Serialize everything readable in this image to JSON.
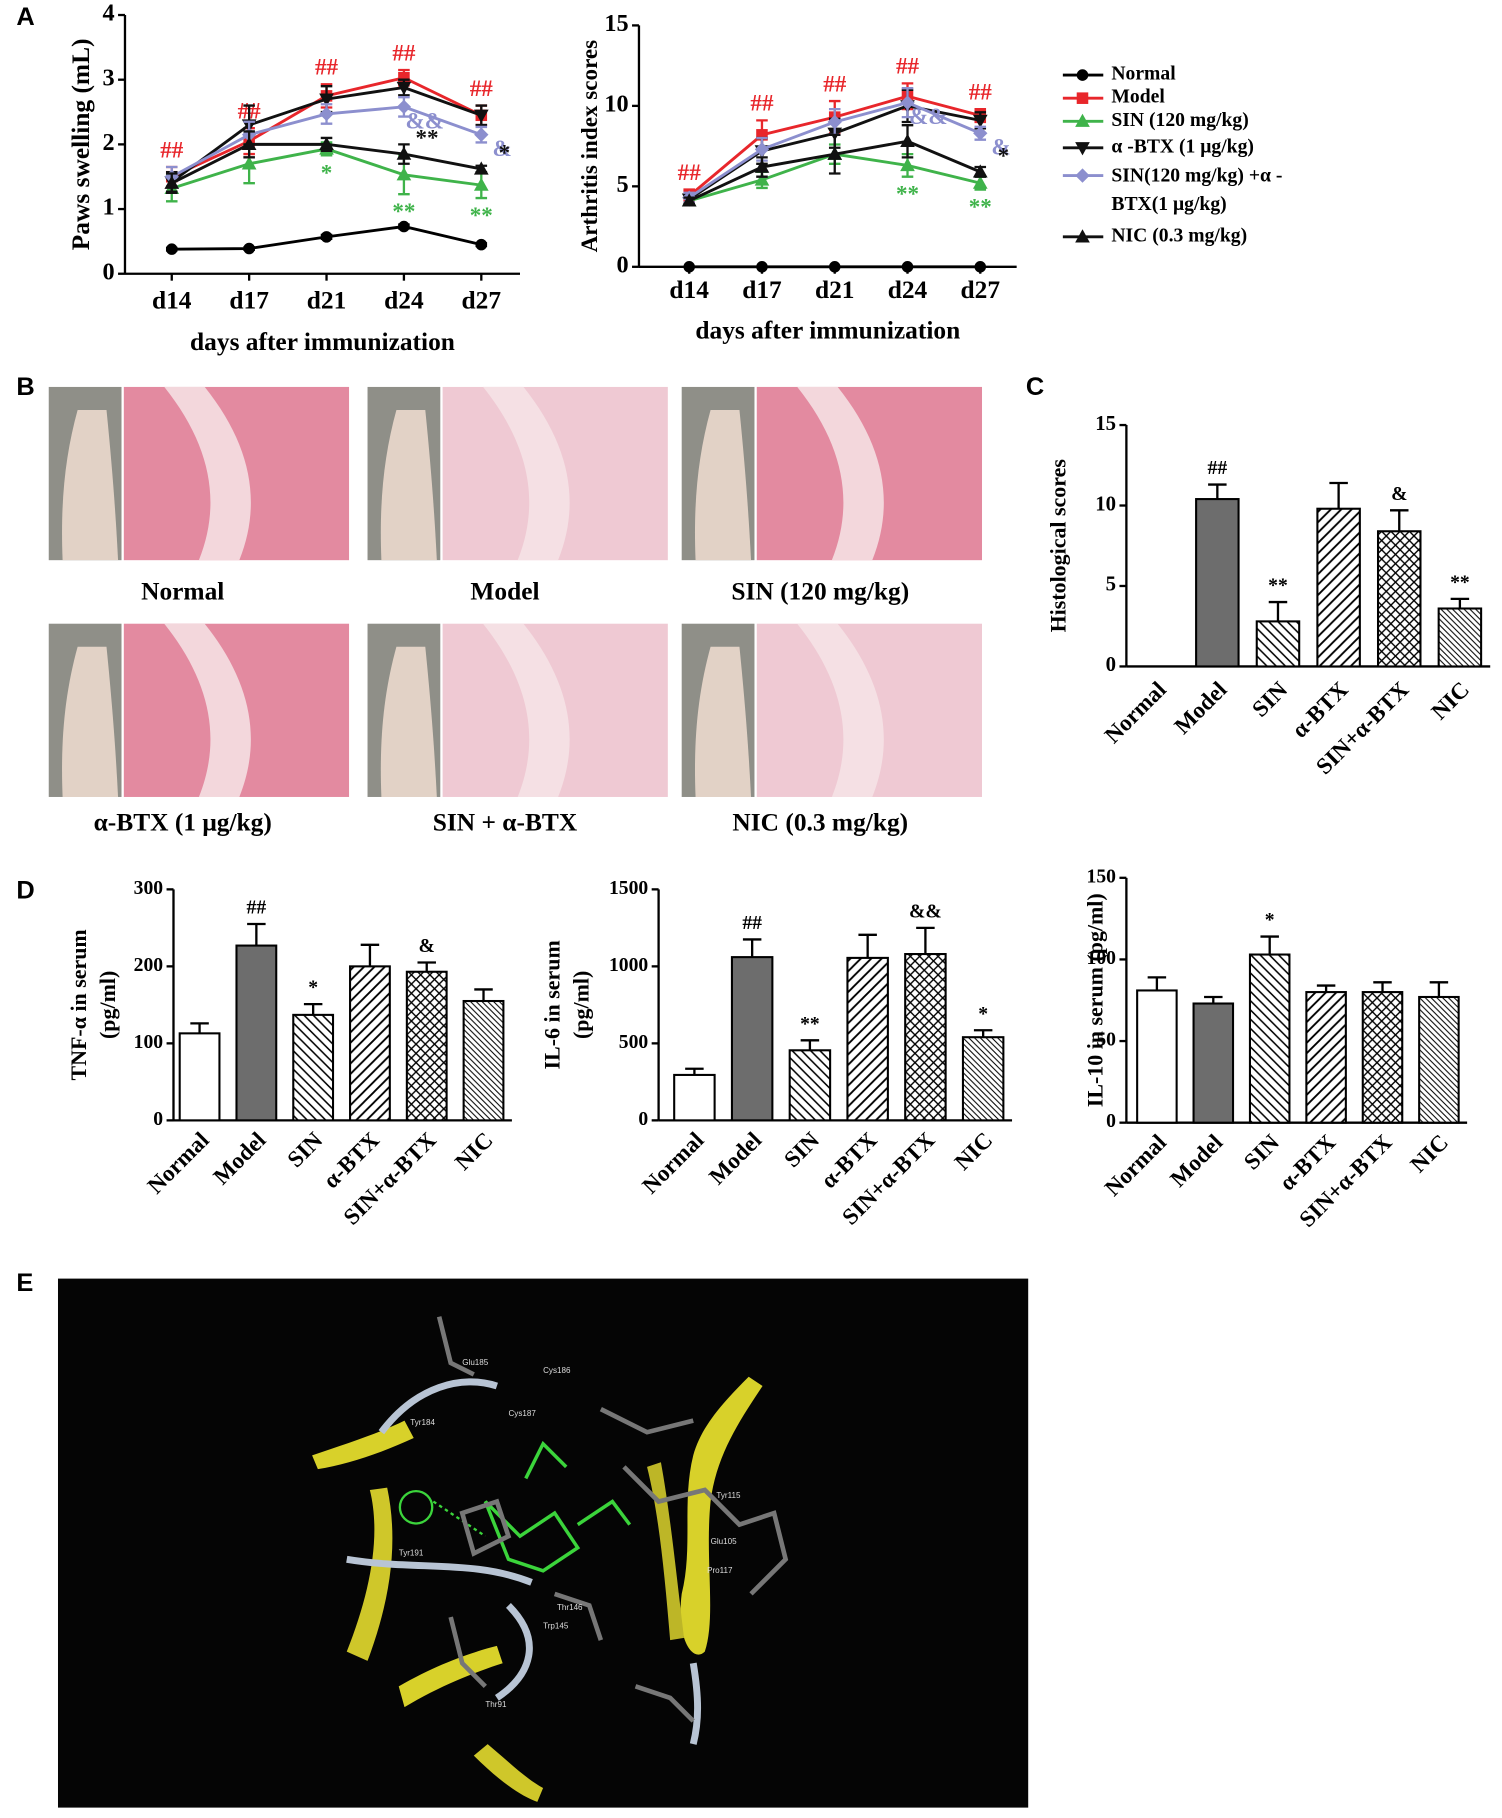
{
  "panels": [
    "A",
    "B",
    "C",
    "D",
    "E"
  ],
  "photo_captions": [
    "Normal",
    "Model",
    "SIN (120 mg/kg)",
    "α-BTX (1 μg/kg)",
    "SIN + α-BTX",
    "NIC (0.3 mg/kg)"
  ],
  "molecule_labels": [
    "Glu185",
    "Cys186",
    "Cys187",
    "Tyr184",
    "Tyr191",
    "Thr146",
    "Trp145",
    "Tyr115",
    "Glu105",
    "Pro117",
    "Thr91"
  ],
  "chart_data": [
    {
      "type": "line",
      "ylabel": "Paws swelling (mL)",
      "xlabel": "days after immunization",
      "categories": [
        "d14",
        "d17",
        "d21",
        "d24",
        "d27"
      ],
      "ylim": [
        0,
        4
      ],
      "yticks": [
        0,
        1,
        2,
        3,
        4
      ],
      "series": [
        {
          "name": "Normal",
          "color": "#000000",
          "marker": "circle",
          "values": [
            0.38,
            0.39,
            0.57,
            0.73,
            0.45
          ],
          "errors": [
            0.02,
            0.02,
            0.03,
            0.03,
            0.02
          ],
          "annotations": [
            null,
            null,
            null,
            null,
            null
          ],
          "annotation_side": "above"
        },
        {
          "name": "Model",
          "color": "#e8262b",
          "marker": "square",
          "values": [
            1.5,
            2.05,
            2.75,
            3.03,
            2.45
          ],
          "errors": [
            0.15,
            0.2,
            0.18,
            0.12,
            0.15
          ],
          "annotations": [
            "##",
            "##",
            "##",
            "##",
            "##"
          ],
          "annotation_side": "above"
        },
        {
          "name": "SIN (120 mg/kg)",
          "color": "#3fb34a",
          "marker": "triangle-up",
          "values": [
            1.32,
            1.7,
            1.93,
            1.53,
            1.37
          ],
          "errors": [
            0.2,
            0.3,
            0.1,
            0.3,
            0.2
          ],
          "annotations": [
            null,
            null,
            "*",
            "**",
            "**"
          ],
          "annotation_side": "below"
        },
        {
          "name": "α -BTX (1 μg/kg)",
          "color": "#111111",
          "marker": "triangle-down",
          "values": [
            1.42,
            2.3,
            2.7,
            2.88,
            2.45
          ],
          "errors": [
            0.15,
            0.3,
            0.2,
            0.12,
            0.15
          ],
          "annotations": [
            null,
            null,
            null,
            null,
            null
          ],
          "annotation_side": "above"
        },
        {
          "name": "SIN(120 mg/kg) +α -BTX(1 μg/kg)",
          "color": "#8c8fce",
          "marker": "diamond",
          "values": [
            1.5,
            2.15,
            2.47,
            2.58,
            2.15
          ],
          "errors": [
            0.15,
            0.2,
            0.15,
            0.15,
            0.12
          ],
          "annotations": [
            null,
            null,
            null,
            "&&",
            "&"
          ],
          "annotation_side": "lower-right"
        },
        {
          "name": "NIC (0.3 mg/kg)",
          "color": "#111111",
          "marker": "triangle-up",
          "values": [
            1.4,
            2.0,
            2.0,
            1.85,
            1.62
          ],
          "errors": [
            0.15,
            0.2,
            0.1,
            0.15,
            0.05
          ],
          "annotations": [
            null,
            null,
            null,
            "**",
            "*"
          ],
          "annotation_side": "upper-right"
        }
      ]
    },
    {
      "type": "line",
      "ylabel": "Arthritis index scores",
      "xlabel": "days after immunization",
      "categories": [
        "d14",
        "d17",
        "d21",
        "d24",
        "d27"
      ],
      "ylim": [
        0,
        15
      ],
      "yticks": [
        0,
        5,
        10,
        15
      ],
      "series": [
        {
          "color": "#000000",
          "marker": "circle",
          "values": [
            0,
            0,
            0,
            0,
            0
          ],
          "errors": [
            0,
            0,
            0,
            0,
            0
          ],
          "annotations": [
            null,
            null,
            null,
            null,
            null
          ],
          "annotation_side": "above"
        },
        {
          "color": "#e8262b",
          "marker": "square",
          "values": [
            4.4,
            8.2,
            9.3,
            10.6,
            9.4
          ],
          "errors": [
            0.4,
            0.9,
            1.0,
            0.8,
            0.4
          ],
          "annotations": [
            "##",
            "##",
            "##",
            "##",
            "##"
          ],
          "annotation_side": "above"
        },
        {
          "color": "#3fb34a",
          "marker": "triangle-up",
          "values": [
            4.1,
            5.4,
            7.0,
            6.3,
            5.2
          ],
          "errors": [
            0.2,
            0.5,
            0.6,
            0.7,
            0.4
          ],
          "annotations": [
            null,
            null,
            null,
            "**",
            "**"
          ],
          "annotation_side": "below"
        },
        {
          "color": "#111111",
          "marker": "triangle-down",
          "values": [
            4.2,
            7.2,
            8.3,
            10.0,
            9.1
          ],
          "errors": [
            0.3,
            0.8,
            0.9,
            1.0,
            0.5
          ],
          "annotations": [
            null,
            null,
            null,
            null,
            null
          ],
          "annotation_side": "above"
        },
        {
          "color": "#8c8fce",
          "marker": "diamond",
          "values": [
            4.3,
            7.3,
            9.0,
            10.2,
            8.3
          ],
          "errors": [
            0.3,
            0.7,
            0.8,
            0.9,
            0.4
          ],
          "annotations": [
            null,
            null,
            null,
            "&&",
            "&"
          ],
          "annotation_side": "lower-right"
        },
        {
          "color": "#111111",
          "marker": "triangle-up",
          "values": [
            4.1,
            6.2,
            7.0,
            7.8,
            5.9
          ],
          "errors": [
            0.2,
            0.6,
            1.2,
            1.0,
            0.3
          ],
          "annotations": [
            null,
            null,
            null,
            null,
            "*"
          ],
          "annotation_side": "upper-right"
        }
      ]
    },
    {
      "type": "bar",
      "ylabel": [
        "Histological scores"
      ],
      "categories": [
        "Normal",
        "Model",
        "SIN",
        "α-BTX",
        "SIN+α-BTX",
        "NIC"
      ],
      "values": [
        0,
        10.4,
        2.8,
        9.8,
        8.4,
        3.6
      ],
      "errors": [
        0,
        0.9,
        1.2,
        1.6,
        1.3,
        0.6
      ],
      "annotations": [
        null,
        "##",
        "**",
        null,
        "&",
        "**"
      ],
      "annotation_color": "#000000",
      "patterns": [
        "none",
        "solid",
        "back-hatch",
        "hatch",
        "cross-hatch",
        "fine-hatch"
      ],
      "color": "#6d6d6d",
      "ylim": [
        0,
        15
      ],
      "yticks": [
        0,
        5,
        10,
        15
      ]
    },
    {
      "type": "bar",
      "ylabel": [
        "TNF-α  in serum",
        "(pg/ml)"
      ],
      "categories": [
        "Normal",
        "Model",
        "SIN",
        "α-BTX",
        "SIN+α-BTX",
        "NIC"
      ],
      "values": [
        113,
        227,
        137,
        200,
        193,
        155
      ],
      "errors": [
        13,
        28,
        14,
        28,
        12,
        15
      ],
      "annotations": [
        null,
        "##",
        "*",
        null,
        "&",
        null
      ],
      "annotation_color": "#000000",
      "patterns": [
        "none",
        "solid",
        "back-hatch",
        "hatch",
        "cross-hatch",
        "fine-hatch"
      ],
      "color": "#6d6d6d",
      "ylim": [
        0,
        300
      ],
      "yticks": [
        0,
        100,
        200,
        300
      ]
    },
    {
      "type": "bar",
      "ylabel": [
        "IL-6 in serum",
        "(pg/ml)"
      ],
      "categories": [
        "Normal",
        "Model",
        "SIN",
        "α-BTX",
        "SIN+α-BTX",
        "NIC"
      ],
      "values": [
        295,
        1060,
        455,
        1055,
        1080,
        540
      ],
      "errors": [
        40,
        115,
        65,
        150,
        170,
        45
      ],
      "annotations": [
        null,
        "##",
        "**",
        null,
        "&&",
        "*"
      ],
      "annotation_color": "#000000",
      "patterns": [
        "none",
        "solid",
        "back-hatch",
        "hatch",
        "cross-hatch",
        "fine-hatch"
      ],
      "color": "#6d6d6d",
      "ylim": [
        0,
        1500
      ],
      "yticks": [
        0,
        500,
        1000,
        1500
      ]
    },
    {
      "type": "bar",
      "ylabel": [
        "IL-10 in serum (pg/ml)"
      ],
      "categories": [
        "Normal",
        "Model",
        "SIN",
        "α-BTX",
        "SIN+α-BTX",
        "NIC"
      ],
      "values": [
        81,
        73,
        103,
        80,
        80,
        77
      ],
      "errors": [
        8,
        4,
        11,
        4,
        6,
        9
      ],
      "annotations": [
        null,
        null,
        "*",
        null,
        null,
        null
      ],
      "annotation_color": "#000000",
      "patterns": [
        "none",
        "solid",
        "back-hatch",
        "hatch",
        "cross-hatch",
        "fine-hatch"
      ],
      "color": "#6d6d6d",
      "ylim": [
        0,
        150
      ],
      "yticks": [
        0,
        50,
        100,
        150
      ]
    }
  ]
}
